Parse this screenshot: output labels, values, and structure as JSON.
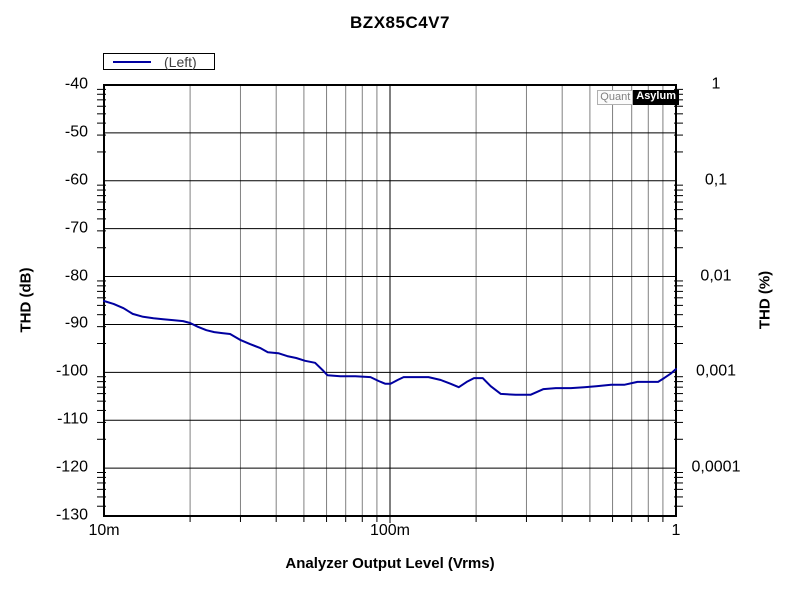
{
  "title": "BZX85C4V7",
  "legend": {
    "series_label": "(Left)"
  },
  "watermark": {
    "part1": "Quant",
    "part2": "Asylum"
  },
  "axes": {
    "left": {
      "label": "THD (dB)",
      "ticks": [
        "-40",
        "-50",
        "-60",
        "-70",
        "-80",
        "-90",
        "-100",
        "-110",
        "-120",
        "-130"
      ]
    },
    "right": {
      "label": "THD (%)",
      "ticks": [
        "1",
        "0,1",
        "0,01",
        "0,001",
        "0,0001"
      ]
    },
    "x": {
      "label": "Analyzer Output Level (Vrms)",
      "ticks": [
        "10m",
        "100m",
        "1"
      ]
    }
  },
  "colors": {
    "curve": "#0000A0",
    "grid_minor": "#808080",
    "grid_major": "#000000",
    "background": "#ffffff",
    "legend_text": "#3f3f3f"
  },
  "chart_data": {
    "type": "line",
    "title": "BZX85C4V7",
    "xlabel": "Analyzer Output Level (Vrms)",
    "ylabel_left": "THD (dB)",
    "ylabel_right": "THD (%)",
    "x_scale": "log",
    "x_range_vrms": [
      0.01,
      1
    ],
    "y_range_db": [
      -130,
      -40
    ],
    "y_major_step_db": 10,
    "right_axis_percent_labels_db": [
      [
        -40,
        "1"
      ],
      [
        -60,
        "0,1"
      ],
      [
        -80,
        "0,01"
      ],
      [
        -100,
        "0,001"
      ],
      [
        -120,
        "0,0001"
      ]
    ],
    "grid": true,
    "legend_position": "top-left",
    "series": [
      {
        "name": "(Left)",
        "color": "#0000A0",
        "points_vrms_db": [
          [
            0.01,
            -85.1
          ],
          [
            0.0108,
            -85.7
          ],
          [
            0.0117,
            -86.6
          ],
          [
            0.0126,
            -87.8
          ],
          [
            0.0137,
            -88.4
          ],
          [
            0.0149,
            -88.7
          ],
          [
            0.0161,
            -88.9
          ],
          [
            0.0174,
            -89.1
          ],
          [
            0.0189,
            -89.3
          ],
          [
            0.02,
            -89.7
          ],
          [
            0.0213,
            -90.5
          ],
          [
            0.0228,
            -91.2
          ],
          [
            0.0243,
            -91.6
          ],
          [
            0.0259,
            -91.8
          ],
          [
            0.0276,
            -92.0
          ],
          [
            0.0299,
            -93.2
          ],
          [
            0.0324,
            -94.1
          ],
          [
            0.0351,
            -94.9
          ],
          [
            0.0374,
            -95.8
          ],
          [
            0.0407,
            -96.0
          ],
          [
            0.0437,
            -96.6
          ],
          [
            0.047,
            -97.0
          ],
          [
            0.0505,
            -97.6
          ],
          [
            0.0547,
            -98.0
          ],
          [
            0.0585,
            -99.7
          ],
          [
            0.0604,
            -100.6
          ],
          [
            0.067,
            -100.8
          ],
          [
            0.0757,
            -100.8
          ],
          [
            0.0855,
            -101.0
          ],
          [
            0.0912,
            -101.8
          ],
          [
            0.0964,
            -102.4
          ],
          [
            0.1004,
            -102.4
          ],
          [
            0.1063,
            -101.6
          ],
          [
            0.1116,
            -101.0
          ],
          [
            0.1226,
            -101.0
          ],
          [
            0.1363,
            -101.0
          ],
          [
            0.1505,
            -101.6
          ],
          [
            0.163,
            -102.4
          ],
          [
            0.174,
            -103.1
          ],
          [
            0.1855,
            -102.0
          ],
          [
            0.1966,
            -101.2
          ],
          [
            0.211,
            -101.2
          ],
          [
            0.225,
            -102.9
          ],
          [
            0.244,
            -104.5
          ],
          [
            0.275,
            -104.7
          ],
          [
            0.31,
            -104.7
          ],
          [
            0.344,
            -103.5
          ],
          [
            0.38,
            -103.3
          ],
          [
            0.429,
            -103.3
          ],
          [
            0.477,
            -103.1
          ],
          [
            0.526,
            -102.9
          ],
          [
            0.593,
            -102.6
          ],
          [
            0.659,
            -102.6
          ],
          [
            0.733,
            -102.0
          ],
          [
            0.794,
            -102.0
          ],
          [
            0.866,
            -102.0
          ],
          [
            0.909,
            -101.2
          ],
          [
            0.962,
            -100.2
          ],
          [
            1.0,
            -99.3
          ]
        ]
      }
    ]
  }
}
